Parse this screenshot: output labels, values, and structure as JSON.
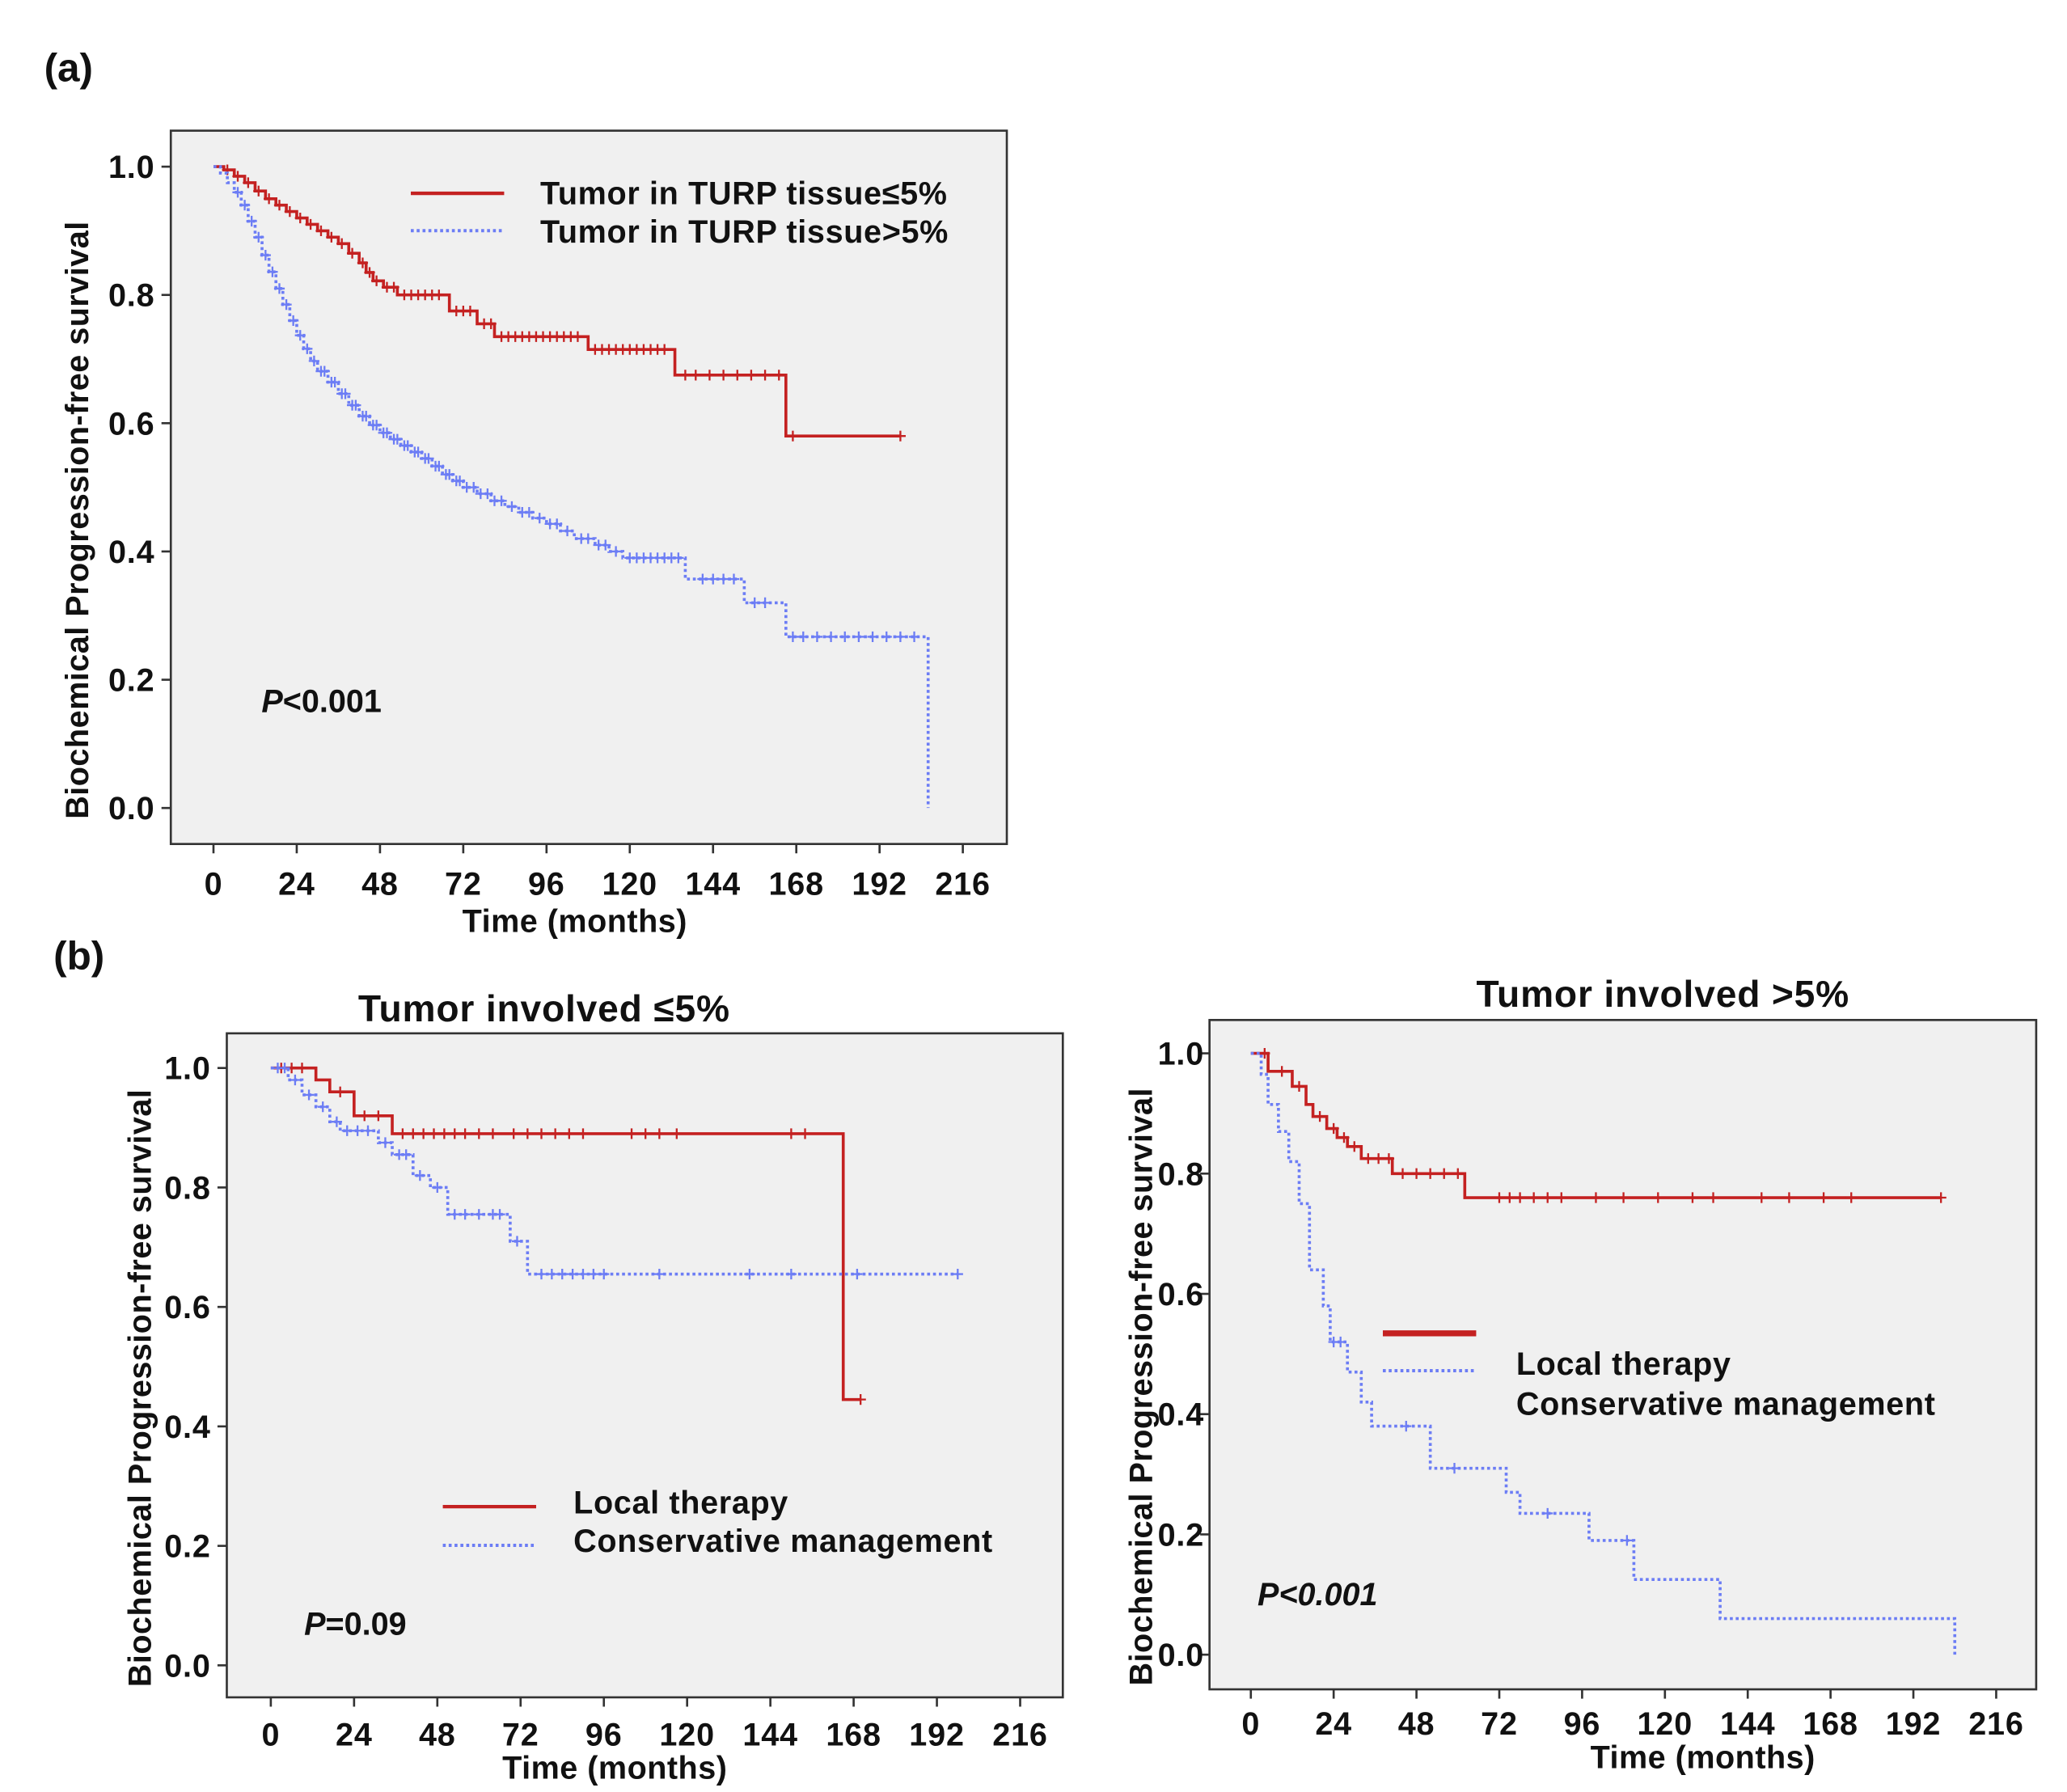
{
  "figure": {
    "panel_a_label": "(a)",
    "panel_b_label": "(b)"
  },
  "colors": {
    "plot_bg": "#f0f0f0",
    "axis": "#333333"
  },
  "chart_data": [
    {
      "type": "line",
      "xlabel": "Time (months)",
      "ylabel": "Biochemical Progression-free survival",
      "xlim": [
        0,
        216
      ],
      "ylim": [
        0,
        1
      ],
      "xticks": [
        "0",
        "24",
        "48",
        "72",
        "96",
        "120",
        "144",
        "168",
        "192",
        "216"
      ],
      "yticks": [
        "0.0",
        "0.2",
        "0.4",
        "0.6",
        "0.8",
        "1.0"
      ],
      "annotation": {
        "symbol": "P",
        "value": "<0.001"
      },
      "series": [
        {
          "name": "Tumor in TURP tissue≤5%",
          "color": "#c42121",
          "steps": [
            [
              0,
              1.0
            ],
            [
              3,
              0.995
            ],
            [
              6,
              0.985
            ],
            [
              9,
              0.975
            ],
            [
              12,
              0.962
            ],
            [
              15,
              0.95
            ],
            [
              18,
              0.94
            ],
            [
              21,
              0.93
            ],
            [
              24,
              0.92
            ],
            [
              27,
              0.91
            ],
            [
              30,
              0.9
            ],
            [
              33,
              0.89
            ],
            [
              36,
              0.88
            ],
            [
              39,
              0.865
            ],
            [
              42,
              0.85
            ],
            [
              44,
              0.835
            ],
            [
              46,
              0.822
            ],
            [
              49,
              0.812
            ],
            [
              53,
              0.8
            ],
            [
              68,
              0.775
            ],
            [
              76,
              0.755
            ],
            [
              81,
              0.735
            ],
            [
              108,
              0.715
            ],
            [
              133,
              0.675
            ],
            [
              165,
              0.58
            ]
          ],
          "end": 198,
          "censored": [
            4,
            7,
            10,
            13,
            16,
            19,
            22,
            25,
            28,
            31,
            34,
            37,
            40,
            43,
            45,
            47,
            50,
            52,
            55,
            57,
            59,
            61,
            63,
            65,
            70,
            72,
            74,
            78,
            80,
            83,
            85,
            87,
            89,
            91,
            93,
            95,
            97,
            99,
            101,
            103,
            105,
            110,
            112,
            114,
            116,
            118,
            120,
            122,
            124,
            126,
            128,
            130,
            136,
            139,
            143,
            147,
            151,
            155,
            159,
            163,
            167,
            198
          ]
        },
        {
          "name": "Tumor in TURP tissue>5%",
          "color": "#6c7df5",
          "steps": [
            [
              0,
              1.0
            ],
            [
              2,
              0.99
            ],
            [
              4,
              0.975
            ],
            [
              6,
              0.96
            ],
            [
              8,
              0.94
            ],
            [
              10,
              0.915
            ],
            [
              12,
              0.89
            ],
            [
              14,
              0.862
            ],
            [
              16,
              0.836
            ],
            [
              18,
              0.81
            ],
            [
              20,
              0.785
            ],
            [
              22,
              0.76
            ],
            [
              24,
              0.737
            ],
            [
              26,
              0.716
            ],
            [
              28,
              0.697
            ],
            [
              30,
              0.681
            ],
            [
              33,
              0.664
            ],
            [
              36,
              0.646
            ],
            [
              39,
              0.628
            ],
            [
              42,
              0.611
            ],
            [
              45,
              0.597
            ],
            [
              48,
              0.585
            ],
            [
              51,
              0.575
            ],
            [
              54,
              0.565
            ],
            [
              57,
              0.555
            ],
            [
              60,
              0.545
            ],
            [
              63,
              0.533
            ],
            [
              66,
              0.52
            ],
            [
              69,
              0.51
            ],
            [
              72,
              0.5
            ],
            [
              76,
              0.49
            ],
            [
              80,
              0.479
            ],
            [
              84,
              0.47
            ],
            [
              88,
              0.461
            ],
            [
              92,
              0.452
            ],
            [
              96,
              0.443
            ],
            [
              100,
              0.432
            ],
            [
              104,
              0.42
            ],
            [
              110,
              0.41
            ],
            [
              114,
              0.4
            ],
            [
              118,
              0.39
            ],
            [
              136,
              0.357
            ],
            [
              153,
              0.32
            ],
            [
              165,
              0.267
            ],
            [
              206,
              0.0
            ]
          ],
          "end": 206,
          "censored": [
            7,
            9,
            11,
            13,
            15,
            17,
            19,
            21,
            23,
            25,
            27,
            29,
            31,
            32,
            34,
            35,
            37,
            38,
            40,
            41,
            43,
            44,
            46,
            47,
            49,
            50,
            52,
            53,
            55,
            56,
            58,
            59,
            61,
            62,
            64,
            65,
            67,
            68,
            70,
            71,
            73,
            75,
            77,
            79,
            81,
            83,
            86,
            89,
            91,
            94,
            97,
            99,
            102,
            106,
            108,
            111,
            113,
            116,
            120,
            122,
            124,
            126,
            128,
            130,
            132,
            134,
            141,
            144,
            147,
            150,
            156,
            159,
            167,
            170,
            174,
            178,
            182,
            186,
            190,
            194,
            198,
            202
          ]
        }
      ]
    },
    {
      "type": "line",
      "title": "Tumor involved ≤5%",
      "xlabel": "Time (months)",
      "ylabel": "Biochemical Progression-free survival",
      "xlim": [
        0,
        216
      ],
      "ylim": [
        0,
        1
      ],
      "xticks": [
        "0",
        "24",
        "48",
        "72",
        "96",
        "120",
        "144",
        "168",
        "192",
        "216"
      ],
      "yticks": [
        "0.0",
        "0.2",
        "0.4",
        "0.6",
        "0.8",
        "1.0"
      ],
      "annotation": {
        "symbol": "P",
        "value": "=0.09"
      },
      "series": [
        {
          "name": "Local therapy",
          "color": "#c42121",
          "steps": [
            [
              0,
              1.0
            ],
            [
              13,
              0.98
            ],
            [
              17,
              0.96
            ],
            [
              24,
              0.92
            ],
            [
              35,
              0.89
            ],
            [
              165,
              0.445
            ]
          ],
          "end": 170,
          "censored": [
            3,
            6,
            9,
            20,
            27,
            31,
            38,
            41,
            44,
            47,
            50,
            53,
            56,
            60,
            64,
            70,
            74,
            78,
            82,
            86,
            90,
            104,
            108,
            112,
            117,
            150,
            154,
            170
          ]
        },
        {
          "name": "Conservative management",
          "color": "#6c7df5",
          "steps": [
            [
              0,
              1.0
            ],
            [
              5,
              0.98
            ],
            [
              9,
              0.955
            ],
            [
              13,
              0.935
            ],
            [
              17,
              0.91
            ],
            [
              20,
              0.895
            ],
            [
              31,
              0.875
            ],
            [
              35,
              0.855
            ],
            [
              41,
              0.82
            ],
            [
              46,
              0.8
            ],
            [
              51,
              0.755
            ],
            [
              69,
              0.71
            ],
            [
              74,
              0.655
            ]
          ],
          "end": 198,
          "censored": [
            2,
            4,
            7,
            11,
            15,
            19,
            22,
            25,
            28,
            33,
            37,
            39,
            43,
            48,
            53,
            56,
            60,
            64,
            66,
            71,
            78,
            81,
            84,
            87,
            90,
            93,
            96,
            112,
            138,
            150,
            169,
            198
          ]
        }
      ]
    },
    {
      "type": "line",
      "title": "Tumor involved >5%",
      "xlabel": "Time (months)",
      "ylabel": "Biochemical Progression-free survival",
      "xlim": [
        0,
        216
      ],
      "ylim": [
        0,
        1
      ],
      "xticks": [
        "0",
        "24",
        "48",
        "72",
        "96",
        "120",
        "144",
        "168",
        "192",
        "216"
      ],
      "yticks": [
        "0.0",
        "0.2",
        "0.4",
        "0.6",
        "0.8",
        "1.0"
      ],
      "annotation": {
        "symbol": "P",
        "value": "<0.001"
      },
      "series": [
        {
          "name": "Local therapy",
          "color": "#c42121",
          "steps": [
            [
              0,
              1.0
            ],
            [
              5,
              0.97
            ],
            [
              12,
              0.945
            ],
            [
              16,
              0.915
            ],
            [
              18,
              0.895
            ],
            [
              22,
              0.875
            ],
            [
              25,
              0.86
            ],
            [
              28,
              0.845
            ],
            [
              32,
              0.825
            ],
            [
              41,
              0.8
            ],
            [
              62,
              0.76
            ]
          ],
          "end": 200,
          "censored": [
            4,
            9,
            14,
            20,
            24,
            27,
            30,
            34,
            37,
            40,
            44,
            48,
            52,
            56,
            60,
            72,
            75,
            78,
            82,
            86,
            90,
            100,
            108,
            118,
            128,
            134,
            148,
            156,
            166,
            174,
            200
          ]
        },
        {
          "name": "Conservative management",
          "color": "#6c7df5",
          "steps": [
            [
              0,
              1.0
            ],
            [
              3,
              0.965
            ],
            [
              5,
              0.915
            ],
            [
              8,
              0.87
            ],
            [
              11,
              0.82
            ],
            [
              14,
              0.75
            ],
            [
              17,
              0.64
            ],
            [
              21,
              0.58
            ],
            [
              23,
              0.52
            ],
            [
              28,
              0.47
            ],
            [
              32,
              0.42
            ],
            [
              35,
              0.38
            ],
            [
              52,
              0.31
            ],
            [
              74,
              0.27
            ],
            [
              78,
              0.235
            ],
            [
              98,
              0.19
            ],
            [
              111,
              0.125
            ],
            [
              136,
              0.06
            ],
            [
              204,
              0.0
            ]
          ],
          "end": 204,
          "censored": [
            24,
            26,
            45,
            59,
            86,
            109
          ]
        }
      ]
    }
  ]
}
